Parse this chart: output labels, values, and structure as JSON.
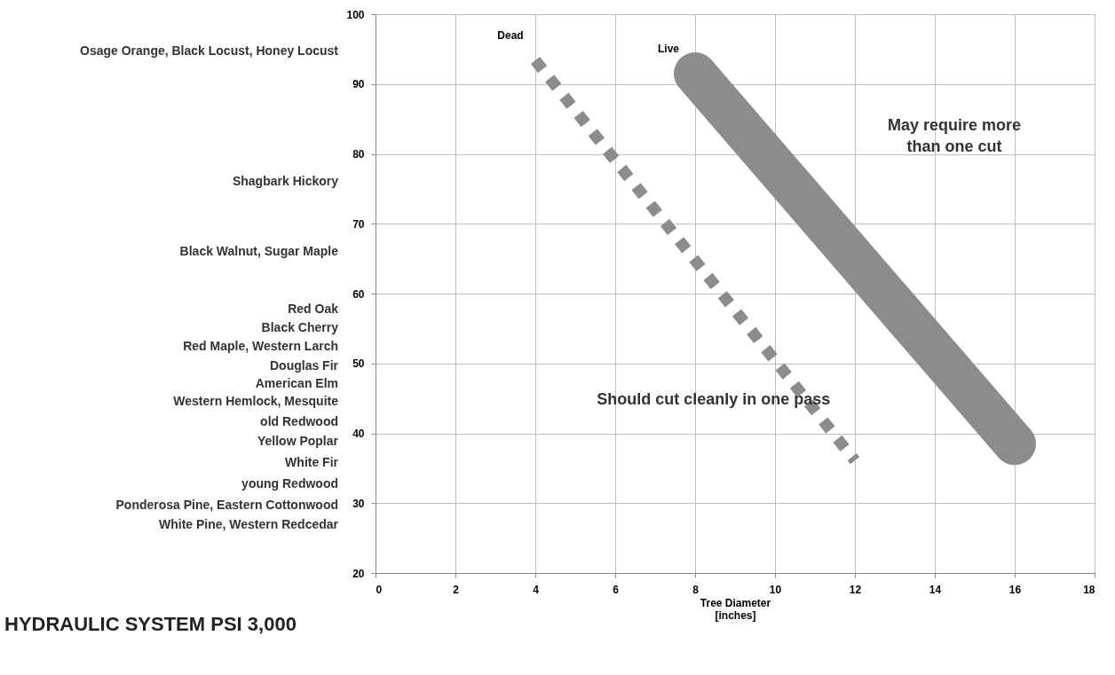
{
  "chart_data": {
    "type": "line",
    "title": "HYDRAULIC SYSTEM PSI 3,000",
    "xlabel": "Tree Diameter\n[inches]",
    "xlim": [
      0,
      18
    ],
    "xticks": [
      0,
      2,
      4,
      6,
      8,
      10,
      12,
      14,
      16,
      18
    ],
    "ylim": [
      20,
      100
    ],
    "yticks": [
      20,
      30,
      40,
      50,
      60,
      70,
      80,
      90,
      100
    ],
    "grid": true,
    "marker": "none",
    "series": [
      {
        "name": "Dead",
        "color": "#8c8c8c",
        "line_style": "dotted",
        "x": [
          4,
          12
        ],
        "values": [
          93.4,
          36.1
        ]
      },
      {
        "name": "Live",
        "color": "#8c8c8c",
        "line_style": "solid",
        "x": [
          8,
          16
        ],
        "values": [
          91.5,
          38.5
        ]
      }
    ],
    "annotations": [
      "May require more\nthan one cut",
      "Should cut cleanly in one pass",
      "Osage Orange, Black Locust, Honey Locust",
      "Shagbark Hickory",
      "Black Walnut, Sugar Maple",
      "Red Oak",
      "Black Cherry",
      "Red Maple, Western Larch",
      "Douglas Fir",
      "American Elm",
      "Western Hemlock, Mesquite",
      "old Redwood",
      "Yellow Poplar",
      "White Fir",
      "young Redwood",
      "Ponderosa Pine, Eastern Cottonwood",
      "White Pine, Western Redcedar"
    ]
  }
}
